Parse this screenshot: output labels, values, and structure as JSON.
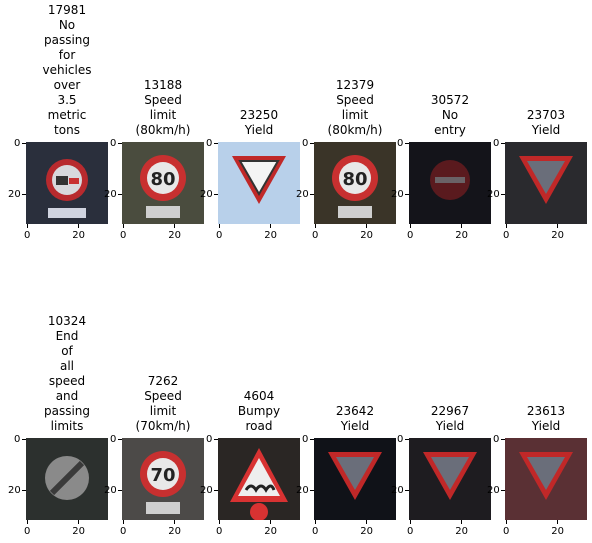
{
  "chart_data": {
    "type": "image_grid",
    "x_ticks": [
      "0",
      "20"
    ],
    "y_ticks": [
      "0",
      "20"
    ],
    "panels": [
      {
        "id": "17981",
        "label": "No\npassing\nfor\nvehicles\nover\n3.5\nmetric\ntons",
        "sign": "no-passing-trucks-icon",
        "bg": "#2a2f3c"
      },
      {
        "id": "13188",
        "label": "Speed\nlimit\n(80km/h)",
        "sign": "speed-limit-icon",
        "speed": "80",
        "bg": "#4a4c3e"
      },
      {
        "id": "23250",
        "label": "Yield",
        "sign": "yield-icon",
        "bg": "#b8d0ea"
      },
      {
        "id": "12379",
        "label": "Speed\nlimit\n(80km/h)",
        "sign": "speed-limit-icon",
        "speed": "80",
        "bg": "#3a3428"
      },
      {
        "id": "30572",
        "label": "No\nentry",
        "sign": "no-entry-icon",
        "bg": "#14141a"
      },
      {
        "id": "23703",
        "label": "Yield",
        "sign": "yield-icon",
        "bg": "#2a2a2e"
      },
      {
        "id": "10324",
        "label": "End\nof\nall\nspeed\nand\npassing\nlimits",
        "sign": "end-limits-icon",
        "bg": "#2c302e"
      },
      {
        "id": "7262",
        "label": "Speed\nlimit\n(70km/h)",
        "sign": "speed-limit-icon",
        "speed": "70",
        "bg": "#4c4a48"
      },
      {
        "id": "4604",
        "label": "Bumpy\nroad",
        "sign": "bumpy-road-icon",
        "bg": "#2a2624"
      },
      {
        "id": "23642",
        "label": "Yield",
        "sign": "yield-icon",
        "bg": "#101218"
      },
      {
        "id": "22967",
        "label": "Yield",
        "sign": "yield-icon",
        "bg": "#1e1c20"
      },
      {
        "id": "23613",
        "label": "Yield",
        "sign": "yield-icon",
        "bg": "#5a3034"
      }
    ]
  }
}
